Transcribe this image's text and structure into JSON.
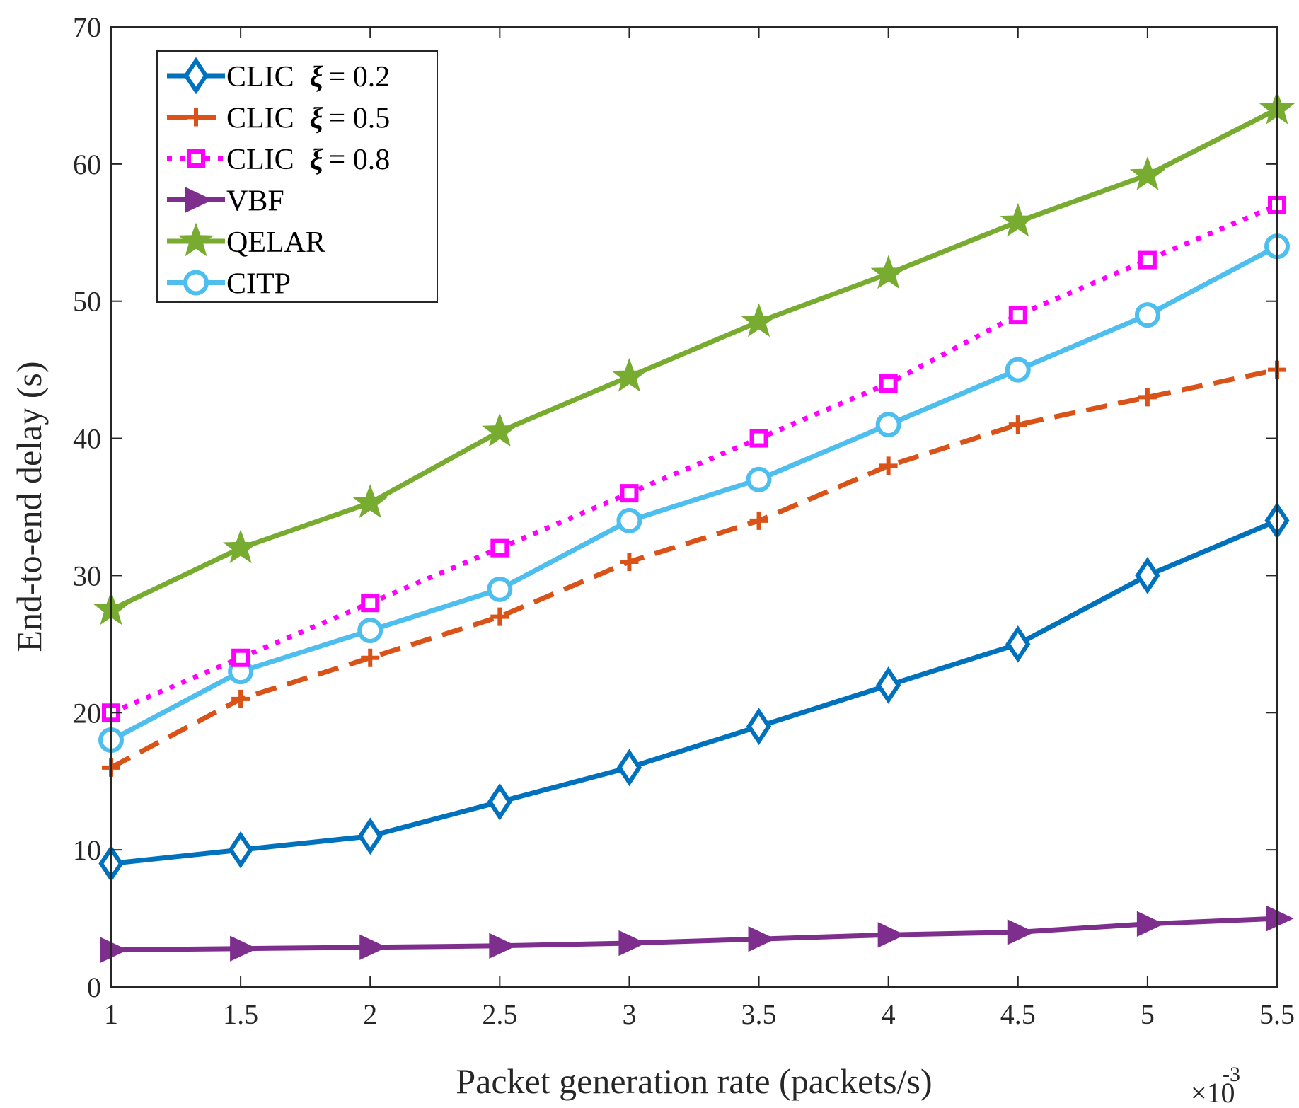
{
  "chart_data": {
    "type": "line",
    "xlabel": "Packet generation rate (packets/s)",
    "ylabel": "End-to-end delay (s)",
    "x_exponent_label": {
      "base": "×10",
      "exponent": "-3"
    },
    "x": [
      1,
      1.5,
      2,
      2.5,
      3,
      3.5,
      4,
      4.5,
      5,
      5.5
    ],
    "xticks": [
      "1",
      "1.5",
      "2",
      "2.5",
      "3",
      "3.5",
      "4",
      "4.5",
      "5",
      "5.5"
    ],
    "yticks": [
      "0",
      "10",
      "20",
      "30",
      "40",
      "50",
      "60",
      "70"
    ],
    "xlim": [
      1,
      5.5
    ],
    "ylim": [
      0,
      70
    ],
    "grid": false,
    "legend_position": "top-left",
    "series": [
      {
        "name": "CLIC",
        "xi_label": "ξ",
        "xi_value": "= 0.2",
        "color": "#0072BD",
        "marker": "diamond",
        "dash": "solid",
        "values": [
          9,
          10,
          11,
          13.5,
          16,
          19,
          22,
          25,
          30,
          34
        ]
      },
      {
        "name": "CLIC",
        "xi_label": "ξ",
        "xi_value": "= 0.5",
        "color": "#D95319",
        "marker": "plus",
        "dash": "dashed",
        "values": [
          16,
          21,
          24,
          27,
          31,
          34,
          38,
          41,
          43,
          45
        ]
      },
      {
        "name": "CLIC",
        "xi_label": "ξ",
        "xi_value": "= 0.8",
        "color": "#FF00FF",
        "marker": "square",
        "dash": "dotted",
        "values": [
          20,
          24,
          28,
          32,
          36,
          40,
          44,
          49,
          53,
          57
        ]
      },
      {
        "name": "VBF",
        "color": "#7E2F8E",
        "marker": "triangle-right",
        "dash": "solid",
        "values": [
          2.7,
          2.8,
          2.9,
          3.0,
          3.2,
          3.5,
          3.8,
          4.0,
          4.6,
          5.0
        ]
      },
      {
        "name": "QELAR",
        "color": "#77AC30",
        "marker": "star",
        "dash": "solid",
        "values": [
          27.5,
          32,
          35.3,
          40.5,
          44.5,
          48.5,
          52,
          55.8,
          59.2,
          64
        ]
      },
      {
        "name": "CITP",
        "color": "#4DBEEE",
        "marker": "circle",
        "dash": "solid",
        "values": [
          18,
          23,
          26,
          29,
          34,
          37,
          41,
          45,
          49,
          54
        ]
      }
    ]
  }
}
